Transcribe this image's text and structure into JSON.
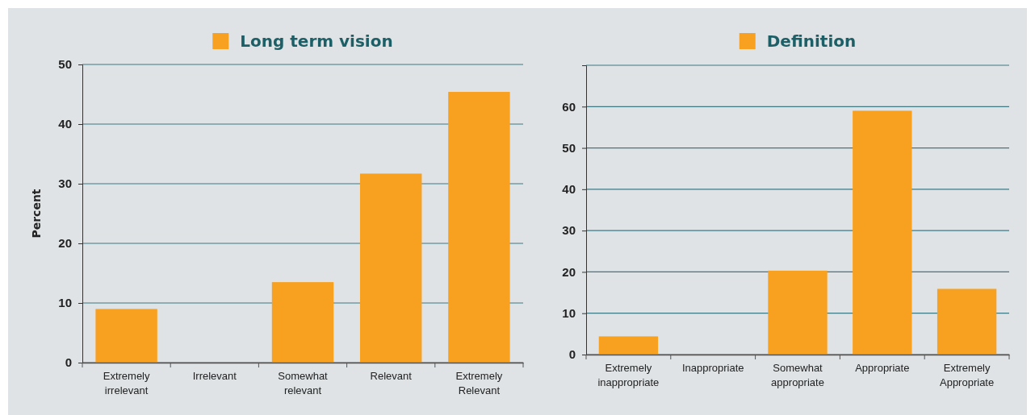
{
  "chart_data": [
    {
      "type": "bar",
      "ylabel": "Percent",
      "categories": [
        "Extremely irrelevant",
        "Irrelevant",
        "Somewhat relevant",
        "Relevant",
        "Extremely Relevant"
      ],
      "series": [
        {
          "name": "Long term vision",
          "color": "#f8a121",
          "values": [
            9,
            0,
            13.5,
            31.7,
            45.4
          ]
        }
      ],
      "ylim": [
        0,
        50
      ],
      "yticks": [
        0,
        10,
        20,
        30,
        40,
        50
      ],
      "grid": "y",
      "legend": "top"
    },
    {
      "type": "bar",
      "categories": [
        "Extremely inappropriate",
        "Inappropriate",
        "Somewhat appropriate",
        "Appropriate",
        "Extremely Appropriate"
      ],
      "series": [
        {
          "name": "Definition",
          "color": "#f8a121",
          "values": [
            4.4,
            0,
            20.3,
            59,
            15.9
          ]
        }
      ],
      "ylim": [
        0,
        70
      ],
      "yticks": [
        0,
        10,
        20,
        30,
        40,
        50,
        60,
        {
          "value": 70,
          "label": null
        }
      ],
      "grid": "y",
      "legend": "top"
    }
  ]
}
